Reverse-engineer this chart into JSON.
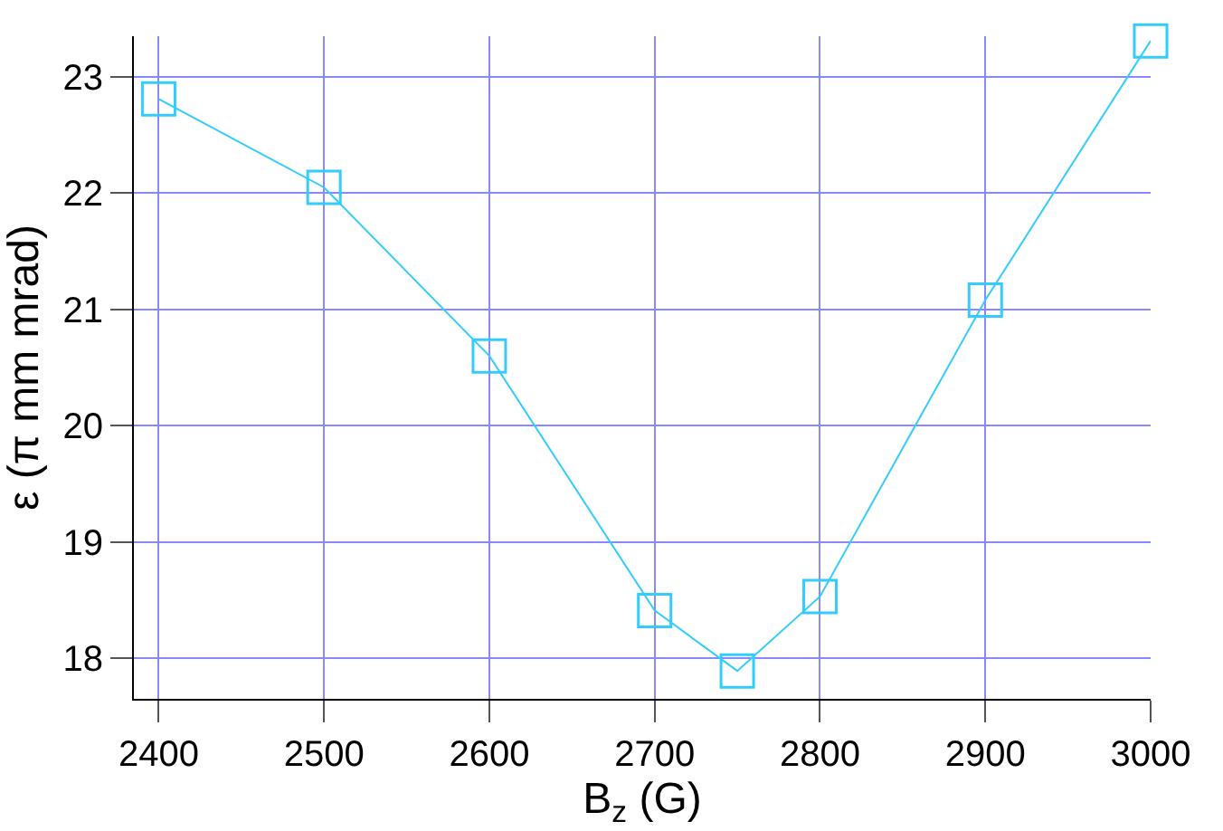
{
  "chart_data": {
    "type": "line",
    "xlabel": "B$_{z}$ (G)",
    "ylabel": "ε (π mm mrad)",
    "x": [
      2400,
      2500,
      2600,
      2700,
      2750,
      2800,
      2900,
      3000
    ],
    "series": [
      {
        "color": "#33ccff",
        "values": [
          22.81,
          22.05,
          20.6,
          18.41,
          17.89,
          18.53,
          21.08,
          23.31
        ]
      }
    ],
    "xlim": [
      2385,
      3000
    ],
    "ylim": [
      17.65,
      23.35
    ],
    "xticks": [
      2400,
      2500,
      2600,
      2700,
      2800,
      2900,
      3000
    ],
    "yticks": [
      18,
      19,
      20,
      21,
      22,
      23
    ],
    "grid": true,
    "marker": "square",
    "line_style": "solid",
    "legend": false
  }
}
